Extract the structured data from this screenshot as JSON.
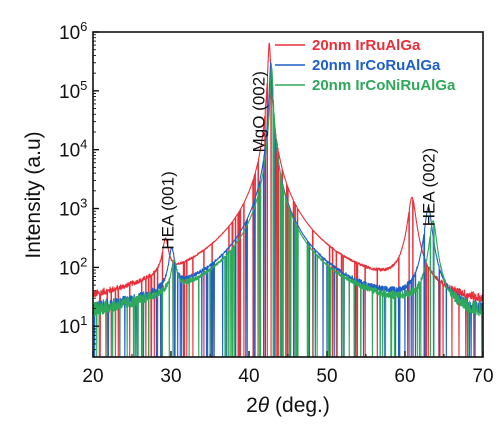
{
  "chart_data": {
    "type": "line",
    "title": "",
    "xlabel_prefix": "2",
    "xlabel_symbol": "θ",
    "xlabel_suffix": " (deg.)",
    "ylabel": "Intensity (a.u)",
    "xlim": [
      20,
      70
    ],
    "ylim": [
      3,
      1000000
    ],
    "yscale": "log",
    "grid": false,
    "legend_position": "top-right",
    "x_ticks": [
      20,
      30,
      40,
      50,
      60,
      70
    ],
    "y_ticks": [
      {
        "value": 10,
        "base": "10",
        "exp": "1"
      },
      {
        "value": 100,
        "base": "10",
        "exp": "2"
      },
      {
        "value": 1000,
        "base": "10",
        "exp": "3"
      },
      {
        "value": 10000,
        "base": "10",
        "exp": "4"
      },
      {
        "value": 100000,
        "base": "10",
        "exp": "5"
      },
      {
        "value": 1000000,
        "base": "10",
        "exp": "6"
      }
    ],
    "annotations": [
      {
        "text": "HEA (001)",
        "x": 30.3,
        "y": 200
      },
      {
        "text": "MgO (002)",
        "x": 42.0,
        "y": 9000
      },
      {
        "text": "HEA (002)",
        "x": 63.8,
        "y": 500
      }
    ],
    "series": [
      {
        "name": "20nm IrRuAlGa",
        "color": "#e8303a",
        "baseline": 8,
        "peaks": [
          {
            "center": 29.3,
            "height": 230,
            "width": 0.45
          },
          {
            "center": 42.6,
            "height": 650000,
            "width": 0.18
          },
          {
            "center": 60.9,
            "height": 1500,
            "width": 0.55
          }
        ]
      },
      {
        "name": "20nm IrCoRuAlGa",
        "color": "#1f5fc8",
        "baseline": 8,
        "peaks": [
          {
            "center": 30.1,
            "height": 170,
            "width": 0.45
          },
          {
            "center": 42.8,
            "height": 300000,
            "width": 0.18
          },
          {
            "center": 63.0,
            "height": 1050,
            "width": 0.5
          }
        ]
      },
      {
        "name": "20nm IrCoNiRuAlGa",
        "color": "#2ea85a",
        "baseline": 9,
        "peaks": [
          {
            "center": 30.4,
            "height": 90,
            "width": 0.45
          },
          {
            "center": 42.9,
            "height": 250000,
            "width": 0.18
          },
          {
            "center": 63.6,
            "height": 600,
            "width": 0.5
          }
        ]
      }
    ]
  }
}
